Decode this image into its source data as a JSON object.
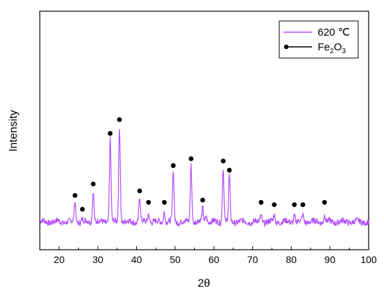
{
  "chart_data": {
    "type": "line",
    "xlabel": "2θ",
    "ylabel": "Intensity",
    "xlim": [
      15,
      100
    ],
    "ylim": [
      0,
      100
    ],
    "x_ticks": [
      20,
      30,
      40,
      50,
      60,
      70,
      80,
      90,
      100
    ],
    "y_ticks_labeled": false,
    "grid": false,
    "legend_position": "top-right",
    "legend": {
      "series_label": "620 ℃",
      "marker_label_main": "Fe",
      "marker_label_sub1": "2",
      "marker_label_mid": "O",
      "marker_label_sub2": "3"
    },
    "colors": {
      "line": "#b34dff",
      "marker": "#000000"
    },
    "series": [
      {
        "name": "620 ℃",
        "peaks": [
          {
            "x": 24.1,
            "h": 9
          },
          {
            "x": 26.0,
            "h": 1
          },
          {
            "x": 28.8,
            "h": 14
          },
          {
            "x": 33.2,
            "h": 36
          },
          {
            "x": 35.6,
            "h": 42
          },
          {
            "x": 40.8,
            "h": 11
          },
          {
            "x": 43.1,
            "h": 4
          },
          {
            "x": 47.2,
            "h": 5
          },
          {
            "x": 49.5,
            "h": 22
          },
          {
            "x": 54.1,
            "h": 25
          },
          {
            "x": 57.1,
            "h": 6
          },
          {
            "x": 58.0,
            "h": 3
          },
          {
            "x": 62.4,
            "h": 24
          },
          {
            "x": 64.0,
            "h": 20
          },
          {
            "x": 72.2,
            "h": 3
          },
          {
            "x": 75.6,
            "h": 3
          },
          {
            "x": 80.8,
            "h": 3
          },
          {
            "x": 83.0,
            "h": 3
          },
          {
            "x": 88.6,
            "h": 3
          }
        ]
      }
    ],
    "markers": {
      "name": "Fe2O3",
      "points": [
        {
          "x": 24.1,
          "y": 9
        },
        {
          "x": 26.0,
          "y": 3
        },
        {
          "x": 28.8,
          "y": 14
        },
        {
          "x": 33.2,
          "y": 36
        },
        {
          "x": 35.6,
          "y": 42
        },
        {
          "x": 40.8,
          "y": 11
        },
        {
          "x": 43.1,
          "y": 6
        },
        {
          "x": 47.2,
          "y": 6
        },
        {
          "x": 49.5,
          "y": 22
        },
        {
          "x": 54.1,
          "y": 25
        },
        {
          "x": 57.1,
          "y": 7
        },
        {
          "x": 62.4,
          "y": 24
        },
        {
          "x": 64.0,
          "y": 20
        },
        {
          "x": 72.2,
          "y": 6
        },
        {
          "x": 75.6,
          "y": 5
        },
        {
          "x": 80.8,
          "y": 5
        },
        {
          "x": 83.0,
          "y": 5
        },
        {
          "x": 88.6,
          "y": 6
        }
      ]
    }
  }
}
